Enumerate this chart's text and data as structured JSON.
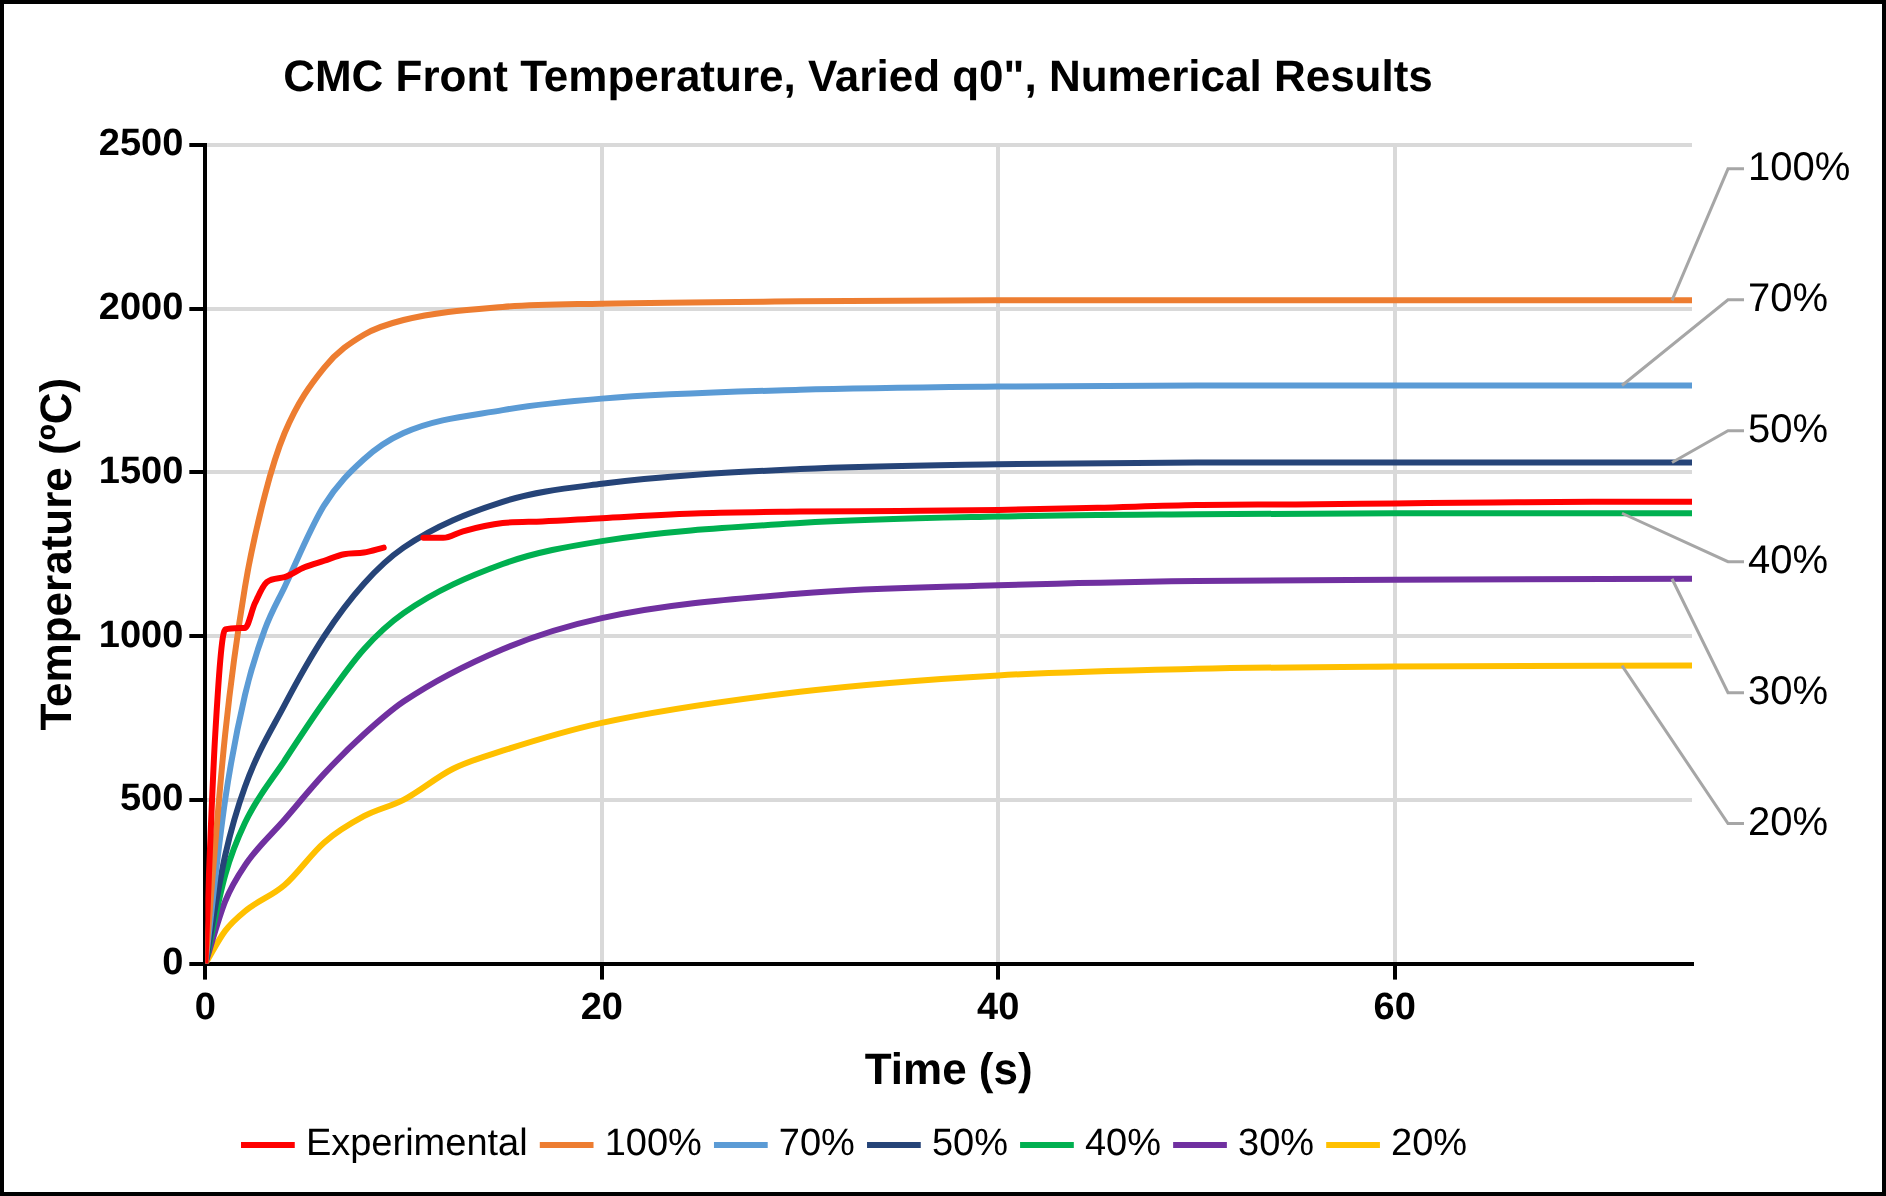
{
  "chart_data": {
    "type": "line",
    "title": "CMC Front Temperature, Varied q0\", Numerical Results",
    "xlabel": "Time (s)",
    "ylabel": "Temperature (ºC)",
    "xlim": [
      0,
      75
    ],
    "xticks": [
      0,
      20,
      40,
      60
    ],
    "ylim": [
      0,
      2500
    ],
    "yticks": [
      0,
      500,
      1000,
      1500,
      2000,
      2500
    ],
    "grid": true,
    "legend": "bottom",
    "marker": "none",
    "line_style": "solid",
    "series": [
      {
        "name": "Experimental",
        "color": "#ff0000",
        "x": [
          0,
          0.5,
          1,
          2,
          2.5,
          3.1,
          4,
          5,
          6,
          7,
          8,
          9,
          10,
          11,
          12,
          13,
          15,
          17,
          20,
          25,
          30,
          35,
          40,
          45,
          50,
          55,
          60,
          65,
          70,
          75
        ],
        "values": [
          0,
          700,
          1020,
          1025,
          1100,
          1165,
          1180,
          1210,
          1230,
          1250,
          1255,
          1270,
          null,
          1300,
          1300,
          1320,
          1345,
          1350,
          1360,
          1375,
          1380,
          1382,
          1385,
          1392,
          1400,
          1402,
          1405,
          1408,
          1410,
          1410
        ]
      },
      {
        "name": "100%",
        "color": "#ed7d31",
        "x": [
          0,
          1,
          2,
          3,
          4,
          6,
          8,
          10,
          15,
          20,
          30,
          40,
          50,
          60,
          75
        ],
        "values": [
          0,
          700,
          1150,
          1430,
          1620,
          1820,
          1920,
          1965,
          2005,
          2015,
          2022,
          2025,
          2025,
          2025,
          2025
        ]
      },
      {
        "name": "70%",
        "color": "#5b9bd5",
        "x": [
          0,
          1,
          2,
          3,
          4,
          6,
          8,
          10,
          15,
          20,
          30,
          40,
          50,
          60,
          75
        ],
        "values": [
          0,
          500,
          820,
          1020,
          1150,
          1400,
          1540,
          1620,
          1690,
          1725,
          1752,
          1762,
          1765,
          1765,
          1765
        ]
      },
      {
        "name": "50%",
        "color": "#264478",
        "x": [
          0,
          1,
          2,
          4,
          6,
          8,
          10,
          15,
          20,
          30,
          40,
          50,
          60,
          75
        ],
        "values": [
          0,
          330,
          540,
          790,
          1000,
          1160,
          1270,
          1410,
          1465,
          1510,
          1525,
          1530,
          1530,
          1530
        ]
      },
      {
        "name": "40%",
        "color": "#00b050",
        "x": [
          0,
          1,
          2,
          4,
          6,
          8,
          10,
          15,
          20,
          30,
          40,
          50,
          60,
          75
        ],
        "values": [
          0,
          270,
          430,
          620,
          800,
          960,
          1070,
          1220,
          1290,
          1345,
          1365,
          1372,
          1375,
          1375
        ]
      },
      {
        "name": "30%",
        "color": "#7030a0",
        "x": [
          0,
          1,
          2,
          4,
          6,
          8,
          10,
          15,
          20,
          30,
          40,
          50,
          60,
          75
        ],
        "values": [
          0,
          190,
          300,
          440,
          580,
          700,
          800,
          960,
          1055,
          1130,
          1155,
          1168,
          1172,
          1175
        ]
      },
      {
        "name": "20%",
        "color": "#ffc000",
        "x": [
          0,
          1,
          2,
          4,
          6,
          8,
          10,
          12.5,
          15,
          20,
          30,
          40,
          50,
          60,
          75
        ],
        "values": [
          0,
          100,
          160,
          240,
          370,
          450,
          500,
          595,
          650,
          735,
          830,
          880,
          900,
          907,
          910
        ]
      }
    ]
  }
}
